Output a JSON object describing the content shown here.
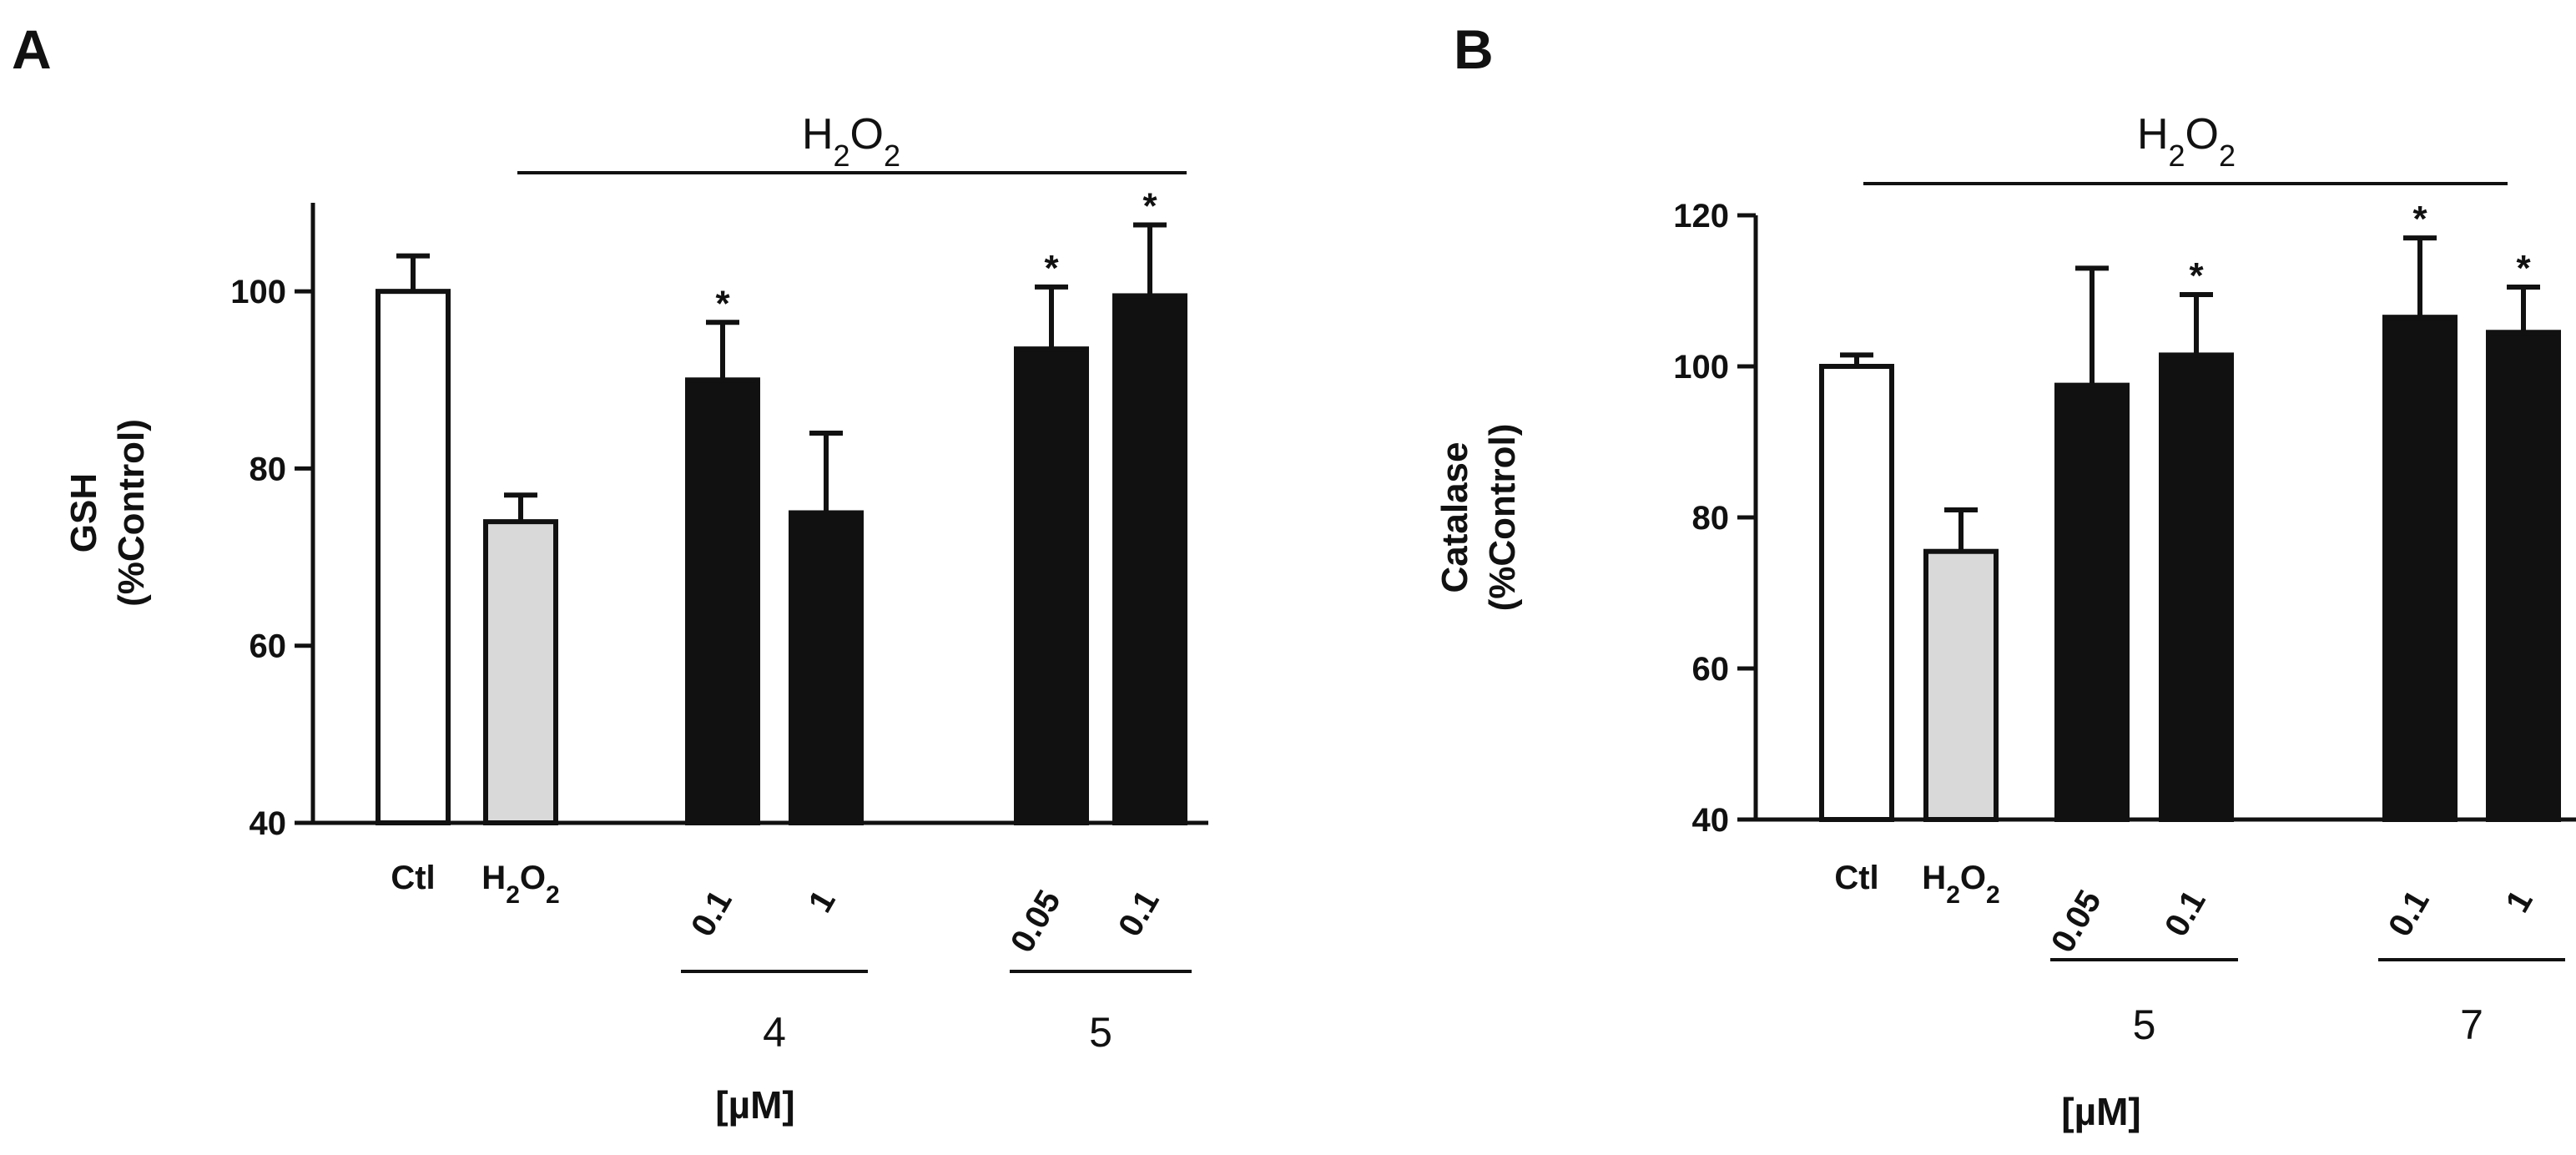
{
  "chart_data": [
    {
      "type": "bar",
      "panel": "A",
      "ylabel": [
        "GSH",
        "(%Control)"
      ],
      "ylim": [
        40,
        110
      ],
      "yticks": [
        40,
        60,
        80,
        100
      ],
      "treatment_label": "H2O2",
      "unit_label": "[µM]",
      "bars": [
        {
          "label": "Ctl",
          "value": 100,
          "error": 4,
          "style": "open",
          "star": false
        },
        {
          "label": "H2O2",
          "value": 74,
          "error": 3,
          "style": "gray",
          "star": false
        },
        {
          "label": "0.1",
          "value": 90,
          "error": 6.5,
          "style": "black",
          "star": true
        },
        {
          "label": "1",
          "value": 75,
          "error": 9,
          "style": "black",
          "star": false
        },
        {
          "label": "0.05",
          "value": 93.5,
          "error": 7,
          "style": "black",
          "star": true
        },
        {
          "label": "0.1",
          "value": 99.5,
          "error": 8,
          "style": "black",
          "star": true
        }
      ],
      "groups": [
        {
          "label": "4",
          "bars": [
            2,
            3
          ]
        },
        {
          "label": "5",
          "bars": [
            4,
            5
          ]
        }
      ]
    },
    {
      "type": "bar",
      "panel": "B",
      "ylabel": [
        "Catalase",
        "(%Control)"
      ],
      "ylim": [
        40,
        120
      ],
      "yticks": [
        40,
        60,
        80,
        100,
        120
      ],
      "treatment_label": "H2O2",
      "unit_label": "[µM]",
      "bars": [
        {
          "label": "Ctl",
          "value": 100,
          "error": 1.5,
          "style": "open",
          "star": false
        },
        {
          "label": "H2O2",
          "value": 75.5,
          "error": 5.5,
          "style": "gray",
          "star": false
        },
        {
          "label": "0.05",
          "value": 97.5,
          "error": 15.5,
          "style": "black",
          "star": false
        },
        {
          "label": "0.1",
          "value": 101.5,
          "error": 8,
          "style": "black",
          "star": true
        },
        {
          "label": "0.1",
          "value": 106.5,
          "error": 10.5,
          "style": "black",
          "star": true
        },
        {
          "label": "1",
          "value": 104.5,
          "error": 6,
          "style": "black",
          "star": true
        }
      ],
      "groups": [
        {
          "label": "5",
          "bars": [
            2,
            3
          ]
        },
        {
          "label": "7",
          "bars": [
            4,
            5
          ]
        }
      ]
    }
  ]
}
